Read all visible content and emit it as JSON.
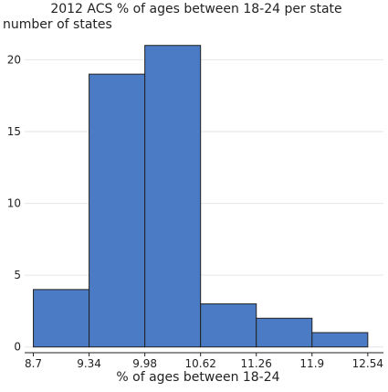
{
  "chart_data": {
    "type": "bar",
    "title": "2012 ACS % of ages between 18-24 per state",
    "ylabel": "number of states",
    "xlabel": "% of ages between 18-24",
    "bin_edges": [
      8.7,
      9.34,
      9.98,
      10.62,
      11.26,
      11.9,
      12.54
    ],
    "x_tick_labels": [
      "8.7",
      "9.34",
      "9.98",
      "10.62",
      "11.26",
      "11.9",
      "12.54"
    ],
    "values": [
      4,
      19,
      21,
      3,
      2,
      1
    ],
    "xlim": [
      8.6,
      12.72
    ],
    "ylim": [
      -0.4,
      22
    ],
    "y_ticks": [
      0,
      5,
      10,
      15,
      20
    ],
    "y_tick_labels": [
      "0",
      "5",
      "10",
      "15",
      "20"
    ],
    "grid": "horizontal",
    "bar_color": "#4a7bc4",
    "bar_edge_color": "#222222",
    "grid_color": "#e6e6e6",
    "axis_color": "#222222"
  }
}
